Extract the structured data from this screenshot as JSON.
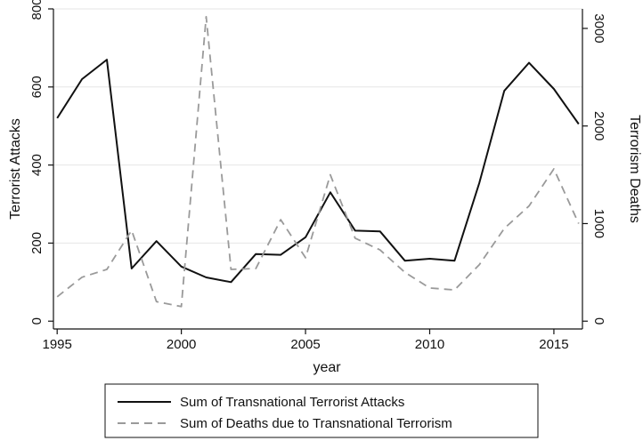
{
  "chart_data": {
    "type": "line",
    "x": [
      1995,
      1996,
      1997,
      1998,
      1999,
      2000,
      2001,
      2002,
      2003,
      2004,
      2005,
      2006,
      2007,
      2008,
      2009,
      2010,
      2011,
      2012,
      2013,
      2014,
      2015,
      2016
    ],
    "xlabel": "year",
    "ylabel_left": "Terrorist Attacks",
    "ylabel_right": "Terrorism Deaths",
    "xticks": [
      1995,
      2000,
      2005,
      2010,
      2015
    ],
    "yticks_left": [
      0,
      200,
      400,
      600,
      800
    ],
    "yticks_right": [
      0,
      1000,
      2000,
      3000
    ],
    "ylim_left": [
      -20,
      800
    ],
    "ylim_right": [
      -80,
      3200
    ],
    "grid": true,
    "legend_position": "bottom",
    "series": [
      {
        "name": "Sum of Transnational Terrorist Attacks",
        "axis": "left",
        "style": "solid",
        "color": "#111111",
        "values": [
          520,
          620,
          670,
          135,
          205,
          140,
          112,
          100,
          172,
          170,
          215,
          330,
          232,
          230,
          155,
          160,
          155,
          355,
          590,
          662,
          595,
          505
        ]
      },
      {
        "name": "Sum of Deaths due to Transnational Terrorism",
        "axis": "right",
        "style": "dashed",
        "color": "#9a9a9a",
        "values": [
          250,
          450,
          530,
          930,
          200,
          150,
          3120,
          530,
          540,
          1040,
          650,
          1500,
          850,
          730,
          500,
          340,
          320,
          580,
          950,
          1180,
          1560,
          1000
        ]
      }
    ]
  }
}
